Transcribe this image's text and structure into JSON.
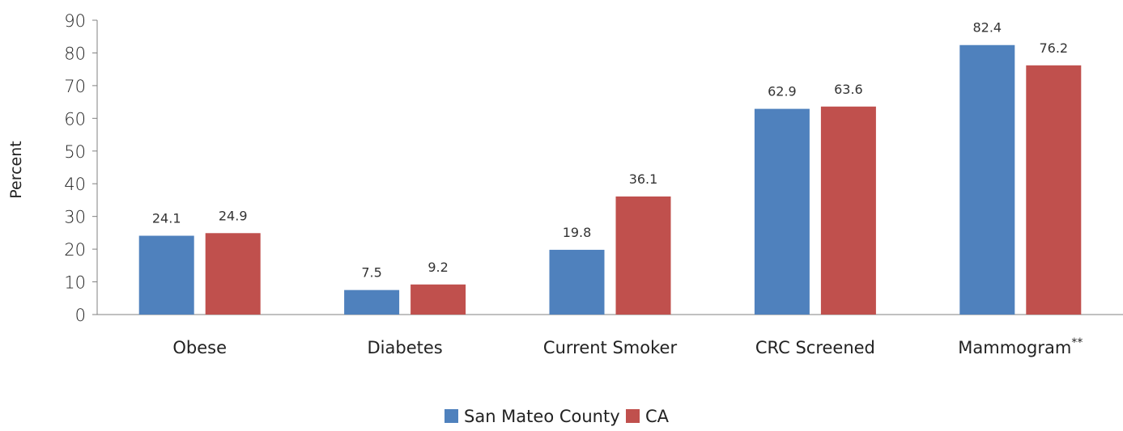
{
  "chart_data": {
    "type": "bar",
    "categories": [
      "Obese",
      "Diabetes",
      "Current Smoker",
      "CRC Screened",
      "Mammogram"
    ],
    "category_footnotes": [
      "",
      "",
      "",
      "",
      "**"
    ],
    "series": [
      {
        "name": "San Mateo County",
        "color": "#4F81BD",
        "values": [
          24.1,
          7.5,
          19.8,
          62.9,
          82.4
        ]
      },
      {
        "name": "CA",
        "color": "#C0504D",
        "values": [
          24.9,
          9.2,
          36.1,
          63.6,
          76.2
        ]
      }
    ],
    "title": "",
    "xlabel": "",
    "ylabel": "Percent",
    "ylim": [
      0,
      90
    ],
    "yticks": [
      0,
      10,
      20,
      30,
      40,
      50,
      60,
      70,
      80,
      90
    ],
    "grid": false,
    "legend_position": "bottom-center"
  }
}
